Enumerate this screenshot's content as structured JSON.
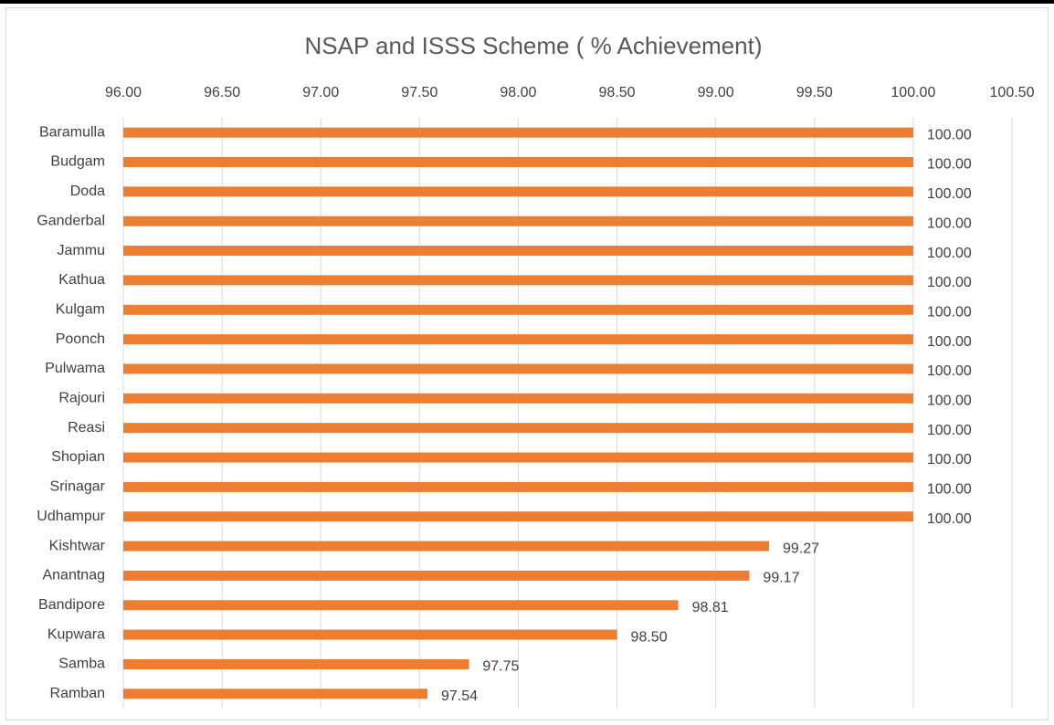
{
  "chart_data": {
    "type": "hbar",
    "title": "NSAP and ISSS Scheme ( % Achievement)",
    "categories": [
      "Baramulla",
      "Budgam",
      "Doda",
      "Ganderbal",
      "Jammu",
      "Kathua",
      "Kulgam",
      "Poonch",
      "Pulwama",
      "Rajouri",
      "Reasi",
      "Shopian",
      "Srinagar",
      "Udhampur",
      "Kishtwar",
      "Anantnag",
      "Bandipore",
      "Kupwara",
      "Samba",
      "Ramban"
    ],
    "values": [
      100,
      100,
      100,
      100,
      100,
      100,
      100,
      100,
      100,
      100,
      100,
      100,
      100,
      100,
      99.27,
      99.17,
      98.81,
      98.5,
      97.75,
      97.54
    ],
    "value_labels": [
      "100.00",
      "100.00",
      "100.00",
      "100.00",
      "100.00",
      "100.00",
      "100.00",
      "100.00",
      "100.00",
      "100.00",
      "100.00",
      "100.00",
      "100.00",
      "100.00",
      "99.27",
      "99.17",
      "98.81",
      "98.50",
      "97.75",
      "97.54"
    ],
    "color": "#ed7d31",
    "xlim": [
      96,
      100.5
    ],
    "xticks": [
      {
        "value": 96,
        "label": "96.00"
      },
      {
        "value": 96.5,
        "label": "96.50"
      },
      {
        "value": 97,
        "label": "97.00"
      },
      {
        "value": 97.5,
        "label": "97.50"
      },
      {
        "value": 98,
        "label": "98.00"
      },
      {
        "value": 98.5,
        "label": "98.50"
      },
      {
        "value": 99,
        "label": "99.00"
      },
      {
        "value": 99.5,
        "label": "99.50"
      },
      {
        "value": 100,
        "label": "100.00"
      },
      {
        "value": 100.5,
        "label": "100.50"
      }
    ],
    "grid": true
  }
}
